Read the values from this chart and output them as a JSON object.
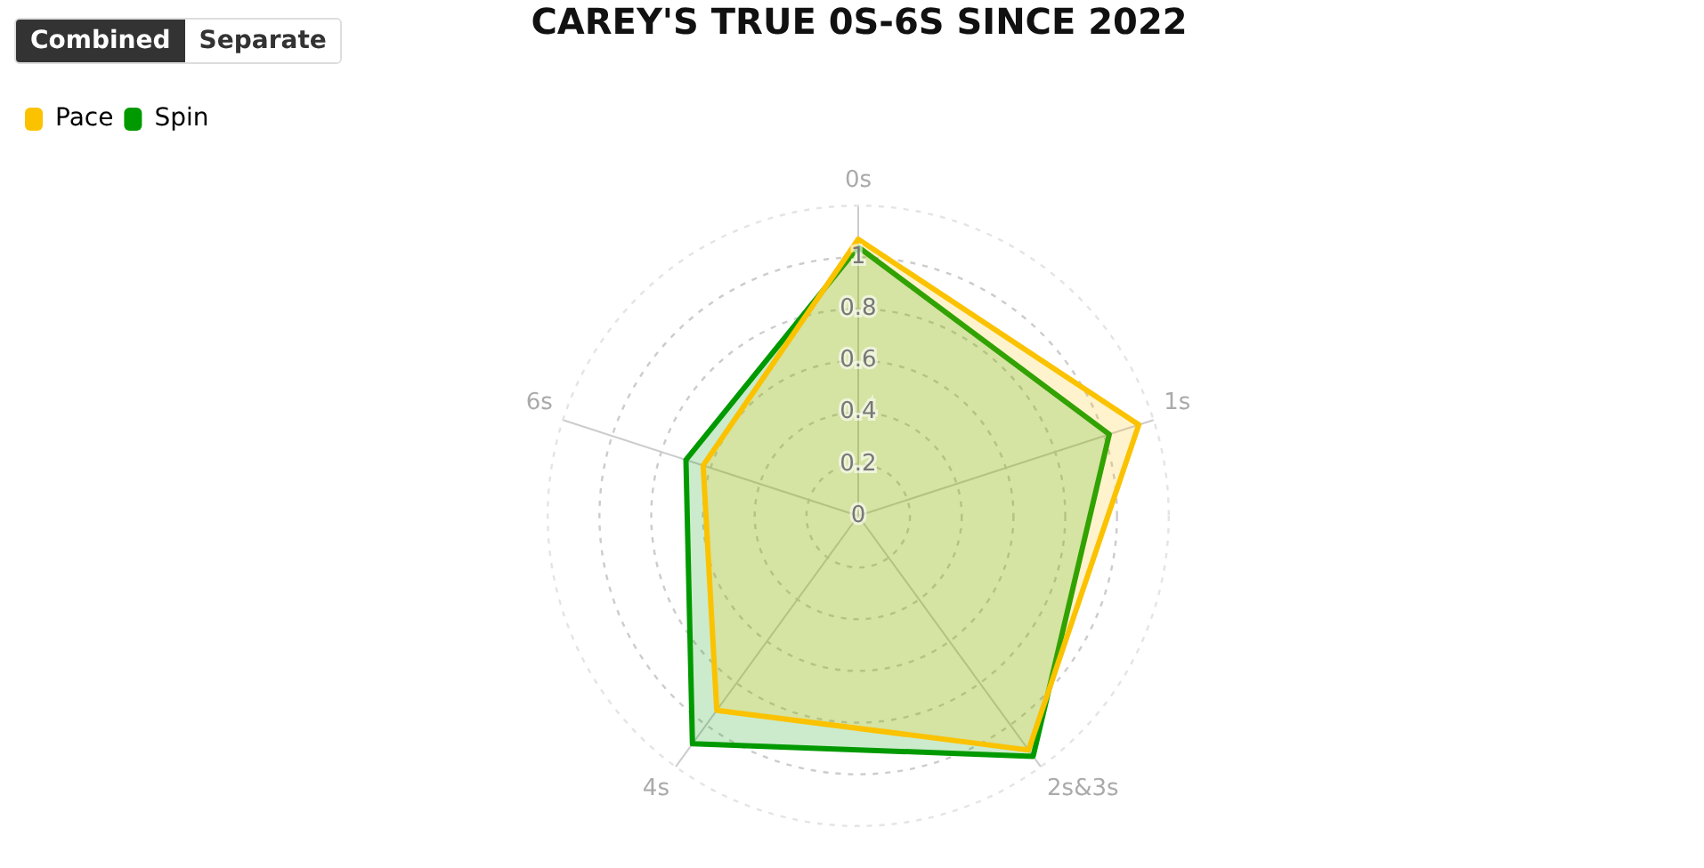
{
  "chart_data": {
    "type": "radar",
    "title": "CAREY'S TRUE 0S-6S SINCE 2022",
    "annotations": [
      "Combined",
      "Separate"
    ],
    "categories": [
      "0s",
      "1s",
      "2s&3s",
      "4s",
      "6s"
    ],
    "series": [
      {
        "name": "Pace",
        "color": "#fbc200",
        "values": [
          1.07,
          1.14,
          1.12,
          0.93,
          0.63
        ]
      },
      {
        "name": "Spin",
        "color": "#009a00",
        "values": [
          1.04,
          1.02,
          1.15,
          1.09,
          0.7
        ]
      }
    ],
    "ylim": [
      0,
      1.2
    ],
    "yticks": [
      0,
      0.2,
      0.4,
      0.6,
      0.8,
      1
    ],
    "grid": true,
    "legend": "top left",
    "marker": "none",
    "line_style": "solid"
  }
}
